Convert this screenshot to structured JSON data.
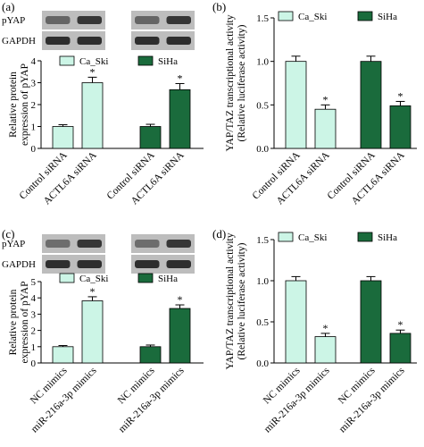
{
  "colors": {
    "ca_ski": "#ccf5e6",
    "siha": "#1a6b3c",
    "axis": "#000000",
    "blot_band": "#1e1e1e",
    "blot_bg": "#bdbdbd"
  },
  "chart_data": [
    {
      "panel": "(a)",
      "type": "bar",
      "blot": {
        "rows": [
          "pYAP",
          "GAPDH"
        ],
        "bands": [
          [
            0.55,
            0.85,
            0.55,
            0.85
          ],
          [
            0.9,
            0.9,
            0.9,
            0.9
          ]
        ]
      },
      "categories": [
        "Control siRNA",
        "ACTL6A siRNA",
        "Control siRNA",
        "ACTL6A siRNA"
      ],
      "groups": [
        "Ca_Ski",
        "Ca_Ski",
        "SiHa",
        "SiHa"
      ],
      "values": [
        1.0,
        3.0,
        1.0,
        2.68
      ],
      "errors": [
        0.08,
        0.25,
        0.1,
        0.28
      ],
      "significant": [
        false,
        true,
        false,
        true
      ],
      "star": "*",
      "legend": [
        "Ca_Ski",
        "SiHa"
      ],
      "ylabel_lines": [
        "Relative protein",
        "expression of pYAP"
      ],
      "ylim": [
        0,
        4
      ],
      "ticks": [
        "0",
        "1",
        "2",
        "3",
        "4"
      ]
    },
    {
      "panel": "(b)",
      "type": "bar",
      "categories": [
        "Control siRNA",
        "ACTL6A siRNA",
        "Control siRNA",
        "ACTL6A siRNA"
      ],
      "groups": [
        "Ca_Ski",
        "Ca_Ski",
        "SiHa",
        "SiHa"
      ],
      "values": [
        1.0,
        0.45,
        1.0,
        0.49
      ],
      "errors": [
        0.06,
        0.05,
        0.06,
        0.05
      ],
      "significant": [
        false,
        true,
        false,
        true
      ],
      "star": "*",
      "legend": [
        "Ca_Ski",
        "SiHa"
      ],
      "ylabel_lines": [
        "YAP/TAZ transcriptional activity",
        "(Relative luciferase activity)"
      ],
      "ylim": [
        0,
        1.5
      ],
      "ticks": [
        "0.0",
        "0.5",
        "1.0",
        "1.5"
      ]
    },
    {
      "panel": "(c)",
      "type": "bar",
      "blot": {
        "rows": [
          "pYAP",
          "GAPDH"
        ],
        "bands": [
          [
            0.5,
            0.85,
            0.5,
            0.85
          ],
          [
            0.9,
            0.9,
            0.9,
            0.9
          ]
        ]
      },
      "categories": [
        "NC mimics",
        "miR-216a-3p mimics",
        "NC mimics",
        "miR-216a-3p mimics"
      ],
      "groups": [
        "Ca_Ski",
        "Ca_Ski",
        "SiHa",
        "SiHa"
      ],
      "values": [
        1.0,
        3.82,
        1.0,
        3.35
      ],
      "errors": [
        0.07,
        0.25,
        0.1,
        0.22
      ],
      "significant": [
        false,
        true,
        false,
        true
      ],
      "star": "*",
      "legend": [
        "Ca_Ski",
        "SiHa"
      ],
      "ylabel_lines": [
        "Relative protein",
        "expression of pYAP"
      ],
      "ylim": [
        0,
        5
      ],
      "ticks": [
        "0",
        "1",
        "2",
        "3",
        "4",
        "5"
      ]
    },
    {
      "panel": "(d)",
      "type": "bar",
      "categories": [
        "NC mimics",
        "miR-216a-3p mimics",
        "NC mimics",
        "miR-216a-3p mimics"
      ],
      "groups": [
        "Ca_Ski",
        "Ca_Ski",
        "SiHa",
        "SiHa"
      ],
      "values": [
        1.0,
        0.32,
        1.0,
        0.36
      ],
      "errors": [
        0.05,
        0.04,
        0.05,
        0.04
      ],
      "significant": [
        false,
        true,
        false,
        true
      ],
      "star": "*",
      "legend": [
        "Ca_Ski",
        "SiHa"
      ],
      "ylabel_lines": [
        "YAP/TAZ transcriptional activity",
        "(Relative luciferase activity)"
      ],
      "ylim": [
        0,
        1.5
      ],
      "ticks": [
        "0.0",
        "0.5",
        "1.0",
        "1.5"
      ]
    }
  ]
}
